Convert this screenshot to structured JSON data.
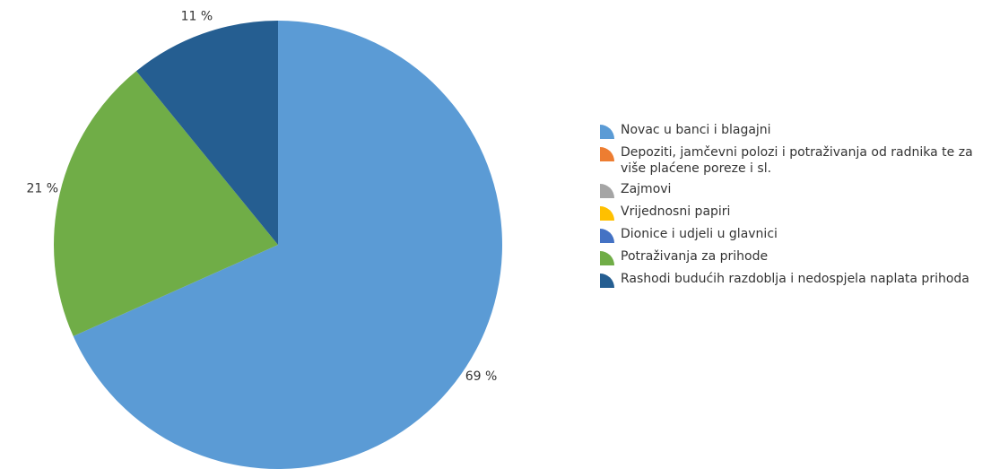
{
  "chart_data": {
    "type": "pie",
    "categories": [
      "Novac u banci i blagajni",
      "Depoziti, jamčevni polozi i potraživanja od radnika te za više plaćene poreze i sl.",
      "Zajmovi",
      "Vrijednosni papiri",
      "Dionice i udjeli u glavnici",
      "Potraživanja za prihode",
      "Rashodi budućih razdoblja i nedospjela naplata prihoda"
    ],
    "values": [
      69,
      0,
      0,
      0,
      0,
      21,
      11
    ],
    "value_labels": [
      "69 %",
      null,
      null,
      null,
      null,
      "21 %",
      "11 %"
    ],
    "colors": [
      "#5b9bd5",
      "#ed7d31",
      "#a5a5a5",
      "#ffc000",
      "#4472c4",
      "#70ad47",
      "#255e91"
    ],
    "legend": "right"
  }
}
